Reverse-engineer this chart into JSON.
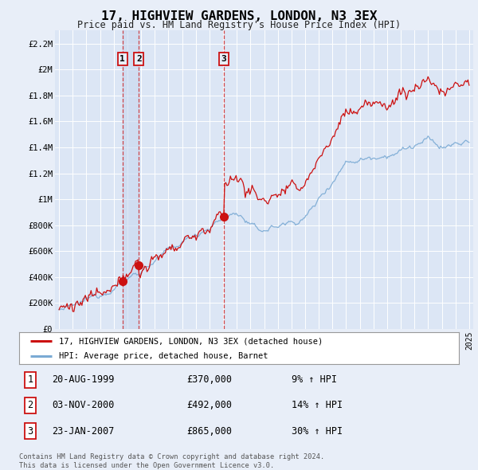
{
  "title": "17, HIGHVIEW GARDENS, LONDON, N3 3EX",
  "subtitle": "Price paid vs. HM Land Registry's House Price Index (HPI)",
  "background_color": "#e8eef8",
  "plot_bg_color": "#dce6f5",
  "ylim": [
    0,
    2300000
  ],
  "yticks": [
    0,
    200000,
    400000,
    600000,
    800000,
    1000000,
    1200000,
    1400000,
    1600000,
    1800000,
    2000000,
    2200000
  ],
  "ytick_labels": [
    "£0",
    "£200K",
    "£400K",
    "£600K",
    "£800K",
    "£1M",
    "£1.2M",
    "£1.4M",
    "£1.6M",
    "£1.8M",
    "£2M",
    "£2.2M"
  ],
  "hpi_color": "#7aaad4",
  "price_color": "#cc1111",
  "shade_color": "#dce6f5",
  "transactions": [
    {
      "date_num": 1999.637,
      "price": 370000,
      "label": "1"
    },
    {
      "date_num": 2000.84,
      "price": 492000,
      "label": "2"
    },
    {
      "date_num": 2007.06,
      "price": 865000,
      "label": "3"
    }
  ],
  "legend_line1": "17, HIGHVIEW GARDENS, LONDON, N3 3EX (detached house)",
  "legend_line2": "HPI: Average price, detached house, Barnet",
  "table": [
    {
      "num": "1",
      "date": "20-AUG-1999",
      "price": "£370,000",
      "hpi": "9% ↑ HPI"
    },
    {
      "num": "2",
      "date": "03-NOV-2000",
      "price": "£492,000",
      "hpi": "14% ↑ HPI"
    },
    {
      "num": "3",
      "date": "23-JAN-2007",
      "price": "£865,000",
      "hpi": "30% ↑ HPI"
    }
  ],
  "footer": "Contains HM Land Registry data © Crown copyright and database right 2024.\nThis data is licensed under the Open Government Licence v3.0."
}
